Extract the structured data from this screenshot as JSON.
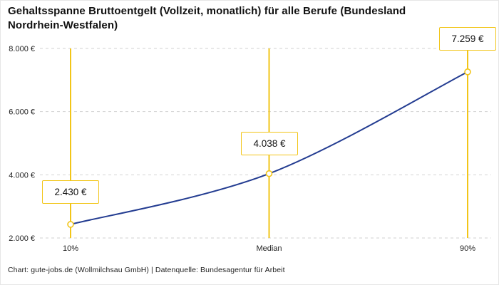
{
  "title": "Gehaltsspanne Bruttoentgelt (Vollzeit, monatlich) für alle Berufe (Bundesland Nordrhein-Westfalen)",
  "footer": "Chart: gute-jobs.de (Wollmilchsau GmbH) | Datenquelle: Bundesagentur für Arbeit",
  "chart_data": {
    "type": "line",
    "title": "Gehaltsspanne Bruttoentgelt (Vollzeit, monatlich) für alle Berufe (Bundesland Nordrhein-Westfalen)",
    "categories": [
      "10%",
      "Median",
      "90%"
    ],
    "values": [
      2430,
      4038,
      7259
    ],
    "labels": [
      "2.430 €",
      "4.038 €",
      "7.259 €"
    ],
    "y_ticks": [
      2000,
      4000,
      6000,
      8000
    ],
    "y_tick_labels": [
      "2.000 €",
      "4.000 €",
      "6.000 €",
      "8.000 €"
    ],
    "ylim": [
      2000,
      8000
    ],
    "grid": "dashed horizontal",
    "legend": "none",
    "colors": {
      "line": "#233c91",
      "accent": "#f2c518",
      "grid": "#d2d2d2",
      "text": "#1f1f1f",
      "annotation_bg": "#ffffff"
    }
  }
}
